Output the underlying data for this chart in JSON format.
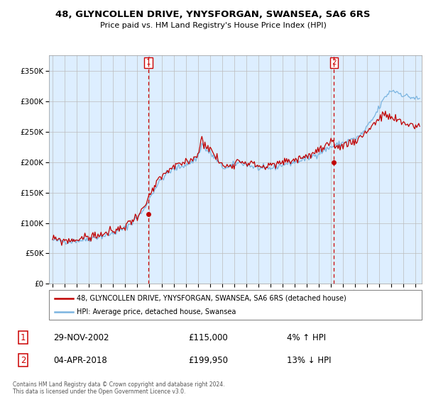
{
  "title": "48, GLYNCOLLEN DRIVE, YNYSFORGAN, SWANSEA, SA6 6RS",
  "subtitle": "Price paid vs. HM Land Registry's House Price Index (HPI)",
  "ytick_values": [
    0,
    50000,
    100000,
    150000,
    200000,
    250000,
    300000,
    350000
  ],
  "ylim": [
    0,
    375000
  ],
  "xlim_start": 1994.7,
  "xlim_end": 2025.5,
  "purchase1_date": 2002.92,
  "purchase1_price": 115000,
  "purchase2_date": 2018.25,
  "purchase2_price": 199950,
  "legend_line1": "48, GLYNCOLLEN DRIVE, YNYSFORGAN, SWANSEA, SA6 6RS (detached house)",
  "legend_line2": "HPI: Average price, detached house, Swansea",
  "footer": "Contains HM Land Registry data © Crown copyright and database right 2024.\nThis data is licensed under the Open Government Licence v3.0.",
  "hpi_color": "#7ab4e0",
  "price_color": "#c00000",
  "annotation_color": "#cc0000",
  "plot_bg_color": "#ddeeff",
  "background_color": "#ffffff",
  "grid_color": "#bbbbbb",
  "hpi_anchors": [
    [
      1995.0,
      72000
    ],
    [
      1995.5,
      70500
    ],
    [
      1996.0,
      70000
    ],
    [
      1996.5,
      70000
    ],
    [
      1997.0,
      71000
    ],
    [
      1997.5,
      72000
    ],
    [
      1998.0,
      74000
    ],
    [
      1998.5,
      76000
    ],
    [
      1999.0,
      78000
    ],
    [
      1999.5,
      80000
    ],
    [
      2000.0,
      83000
    ],
    [
      2000.5,
      87000
    ],
    [
      2001.0,
      92000
    ],
    [
      2001.5,
      100000
    ],
    [
      2002.0,
      110000
    ],
    [
      2002.5,
      120000
    ],
    [
      2003.0,
      140000
    ],
    [
      2003.5,
      158000
    ],
    [
      2004.0,
      172000
    ],
    [
      2004.5,
      182000
    ],
    [
      2005.0,
      188000
    ],
    [
      2005.5,
      192000
    ],
    [
      2006.0,
      196000
    ],
    [
      2006.5,
      200000
    ],
    [
      2007.0,
      208000
    ],
    [
      2007.33,
      230000
    ],
    [
      2007.66,
      220000
    ],
    [
      2008.0,
      215000
    ],
    [
      2008.5,
      205000
    ],
    [
      2009.0,
      192000
    ],
    [
      2009.5,
      190000
    ],
    [
      2010.0,
      196000
    ],
    [
      2010.5,
      200000
    ],
    [
      2011.0,
      196000
    ],
    [
      2011.5,
      193000
    ],
    [
      2012.0,
      190000
    ],
    [
      2012.5,
      188000
    ],
    [
      2013.0,
      190000
    ],
    [
      2013.5,
      192000
    ],
    [
      2014.0,
      196000
    ],
    [
      2014.5,
      198000
    ],
    [
      2015.0,
      200000
    ],
    [
      2015.5,
      203000
    ],
    [
      2016.0,
      206000
    ],
    [
      2016.5,
      210000
    ],
    [
      2017.0,
      215000
    ],
    [
      2017.5,
      220000
    ],
    [
      2018.0,
      225000
    ],
    [
      2018.5,
      228000
    ],
    [
      2019.0,
      232000
    ],
    [
      2019.5,
      236000
    ],
    [
      2020.0,
      238000
    ],
    [
      2020.5,
      245000
    ],
    [
      2021.0,
      258000
    ],
    [
      2021.5,
      272000
    ],
    [
      2022.0,
      290000
    ],
    [
      2022.5,
      308000
    ],
    [
      2023.0,
      318000
    ],
    [
      2023.5,
      315000
    ],
    [
      2024.0,
      310000
    ],
    [
      2024.5,
      307000
    ],
    [
      2025.0,
      305000
    ],
    [
      2025.25,
      303000
    ]
  ],
  "price_anchors": [
    [
      1995.0,
      73000
    ],
    [
      1995.5,
      72000
    ],
    [
      1996.0,
      71000
    ],
    [
      1996.5,
      71500
    ],
    [
      1997.0,
      73000
    ],
    [
      1997.5,
      75000
    ],
    [
      1998.0,
      77000
    ],
    [
      1998.5,
      79000
    ],
    [
      1999.0,
      81000
    ],
    [
      1999.5,
      83000
    ],
    [
      2000.0,
      86000
    ],
    [
      2000.5,
      90000
    ],
    [
      2001.0,
      95000
    ],
    [
      2001.5,
      103000
    ],
    [
      2002.0,
      113000
    ],
    [
      2002.5,
      123000
    ],
    [
      2003.0,
      143000
    ],
    [
      2003.5,
      162000
    ],
    [
      2004.0,
      175000
    ],
    [
      2004.5,
      185000
    ],
    [
      2005.0,
      191000
    ],
    [
      2005.5,
      196000
    ],
    [
      2006.0,
      200000
    ],
    [
      2006.5,
      205000
    ],
    [
      2007.0,
      213000
    ],
    [
      2007.33,
      238000
    ],
    [
      2007.66,
      228000
    ],
    [
      2008.0,
      222000
    ],
    [
      2008.5,
      208000
    ],
    [
      2009.0,
      195000
    ],
    [
      2009.5,
      193000
    ],
    [
      2010.0,
      199000
    ],
    [
      2010.5,
      203000
    ],
    [
      2011.0,
      200000
    ],
    [
      2011.5,
      197000
    ],
    [
      2012.0,
      194000
    ],
    [
      2012.5,
      192000
    ],
    [
      2013.0,
      194000
    ],
    [
      2013.5,
      196000
    ],
    [
      2014.0,
      200000
    ],
    [
      2014.5,
      202000
    ],
    [
      2015.0,
      204000
    ],
    [
      2015.5,
      207000
    ],
    [
      2016.0,
      210000
    ],
    [
      2016.5,
      214000
    ],
    [
      2017.0,
      219000
    ],
    [
      2017.5,
      224000
    ],
    [
      2018.0,
      230000
    ],
    [
      2018.5,
      225000
    ],
    [
      2019.0,
      228000
    ],
    [
      2019.5,
      232000
    ],
    [
      2020.0,
      235000
    ],
    [
      2020.5,
      242000
    ],
    [
      2021.0,
      252000
    ],
    [
      2021.5,
      262000
    ],
    [
      2022.0,
      272000
    ],
    [
      2022.5,
      278000
    ],
    [
      2023.0,
      272000
    ],
    [
      2023.5,
      268000
    ],
    [
      2024.0,
      264000
    ],
    [
      2024.5,
      262000
    ],
    [
      2025.0,
      260000
    ],
    [
      2025.25,
      258000
    ]
  ]
}
